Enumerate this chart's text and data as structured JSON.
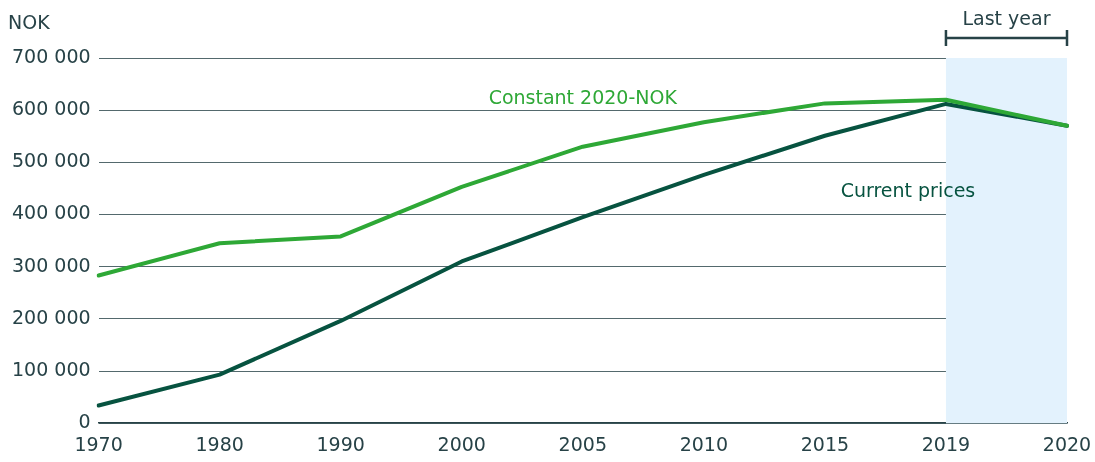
{
  "chart_data": {
    "type": "line",
    "ylabel": "NOK",
    "categories": [
      "1970",
      "1980",
      "1990",
      "2000",
      "2005",
      "2010",
      "2015",
      "2019",
      "2020"
    ],
    "series": [
      {
        "name": "Constant 2020-NOK",
        "color": "#2ea836",
        "values": [
          283000,
          345000,
          358000,
          453000,
          530000,
          577000,
          613000,
          620000,
          570000
        ]
      },
      {
        "name": "Current prices",
        "color": "#075340",
        "values": [
          34000,
          93000,
          196000,
          310000,
          395000,
          476000,
          551000,
          612000,
          570000
        ]
      }
    ],
    "ylim": [
      0,
      700000
    ],
    "yticks": [
      {
        "value": 0,
        "label": "0"
      },
      {
        "value": 100000,
        "label": "100 000"
      },
      {
        "value": 200000,
        "label": "200 000"
      },
      {
        "value": 300000,
        "label": "300 000"
      },
      {
        "value": 400000,
        "label": "400 000"
      },
      {
        "value": 500000,
        "label": "500 000"
      },
      {
        "value": 600000,
        "label": "600 000"
      },
      {
        "value": 700000,
        "label": "700 000"
      }
    ],
    "grid": "y",
    "legend": false,
    "marker": "none",
    "line_style": "solid",
    "bands": [
      {
        "axis": "x",
        "from": "2019",
        "to": "2020",
        "label": "Last year",
        "color": "#e3f2fd"
      }
    ]
  }
}
